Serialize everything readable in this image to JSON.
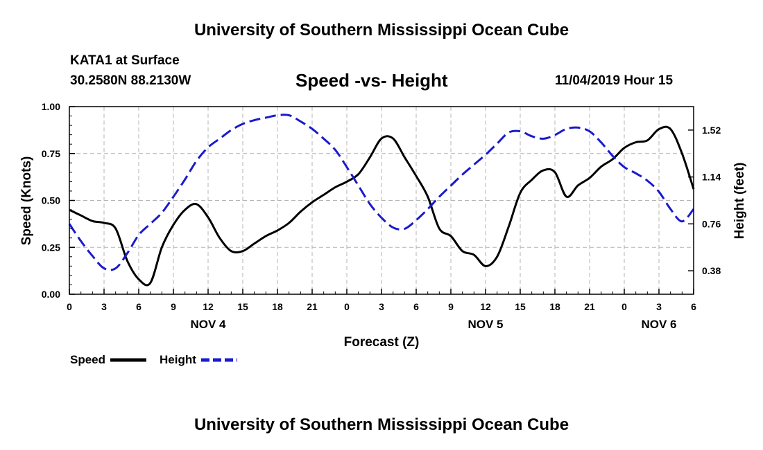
{
  "header": {
    "top_title": "University of Southern Mississippi Ocean Cube",
    "station": "KATA1 at Surface",
    "coords": "30.2580N 88.2130W",
    "datetime": "11/04/2019 Hour 15",
    "bottom_title": "University of Southern Mississippi Ocean Cube"
  },
  "colors": {
    "speed": "#000000",
    "height": "#1a1acc",
    "grid": "#b4b4b4"
  },
  "chart_data": {
    "type": "line",
    "title": "Speed -vs- Height",
    "xlabel": "Forecast (Z)",
    "ylabel": "Speed (Knots)",
    "y2label": "Height (feet)",
    "xlim": [
      0,
      54
    ],
    "ylim": [
      0,
      1.0
    ],
    "y2lim": [
      0.19,
      1.71
    ],
    "xticks": [
      0,
      3,
      6,
      9,
      12,
      15,
      18,
      21,
      24,
      27,
      30,
      33,
      36,
      39,
      42,
      45,
      48,
      51,
      54
    ],
    "xtick_labels": [
      "0",
      "3",
      "6",
      "9",
      "12",
      "15",
      "18",
      "21",
      "0",
      "3",
      "6",
      "9",
      "12",
      "15",
      "18",
      "21",
      "0",
      "3",
      "6"
    ],
    "yticks": [
      0.0,
      0.25,
      0.5,
      0.75,
      1.0
    ],
    "ytick_labels": [
      "0.00",
      "0.25",
      "0.50",
      "0.75",
      "1.00"
    ],
    "y2ticks": [
      0.38,
      0.76,
      1.14,
      1.52
    ],
    "y2tick_labels": [
      "0.38",
      "0.76",
      "1.14",
      "1.52"
    ],
    "day_labels": [
      {
        "x": 12,
        "label": "NOV 4"
      },
      {
        "x": 36,
        "label": "NOV 5"
      },
      {
        "x": 51,
        "label": "NOV 6"
      }
    ],
    "grid": true,
    "legend_position": "bottom-left",
    "series": [
      {
        "name": "Speed",
        "axis": "left",
        "style": "solid",
        "x": [
          0,
          1,
          2,
          3,
          4,
          5,
          6,
          7,
          8,
          9,
          10,
          11,
          12,
          13,
          14,
          15,
          16,
          17,
          18,
          19,
          20,
          21,
          22,
          23,
          24,
          25,
          26,
          27,
          28,
          29,
          30,
          31,
          32,
          33,
          34,
          35,
          36,
          37,
          38,
          39,
          40,
          41,
          42,
          43,
          44,
          45,
          46,
          47,
          48,
          49,
          50,
          51,
          52,
          53,
          54
        ],
        "values": [
          0.45,
          0.42,
          0.39,
          0.38,
          0.35,
          0.18,
          0.08,
          0.06,
          0.25,
          0.37,
          0.45,
          0.48,
          0.41,
          0.3,
          0.23,
          0.23,
          0.27,
          0.31,
          0.34,
          0.38,
          0.44,
          0.49,
          0.53,
          0.57,
          0.6,
          0.64,
          0.73,
          0.83,
          0.83,
          0.73,
          0.63,
          0.52,
          0.35,
          0.31,
          0.23,
          0.21,
          0.15,
          0.2,
          0.36,
          0.54,
          0.61,
          0.66,
          0.65,
          0.52,
          0.58,
          0.62,
          0.68,
          0.72,
          0.78,
          0.81,
          0.82,
          0.88,
          0.88,
          0.75,
          0.56
        ]
      },
      {
        "name": "Height",
        "axis": "right",
        "style": "dashed",
        "x": [
          0,
          1,
          2,
          3,
          4,
          5,
          6,
          7,
          8,
          9,
          10,
          11,
          12,
          13,
          14,
          15,
          16,
          17,
          18,
          19,
          20,
          21,
          22,
          23,
          24,
          25,
          26,
          27,
          28,
          29,
          30,
          31,
          32,
          33,
          34,
          35,
          36,
          37,
          38,
          39,
          40,
          41,
          42,
          43,
          44,
          45,
          46,
          47,
          48,
          49,
          50,
          51,
          52,
          53,
          54
        ],
        "values": [
          0.76,
          0.62,
          0.5,
          0.4,
          0.4,
          0.52,
          0.67,
          0.76,
          0.85,
          0.98,
          1.12,
          1.27,
          1.38,
          1.45,
          1.52,
          1.57,
          1.6,
          1.62,
          1.64,
          1.64,
          1.59,
          1.53,
          1.45,
          1.36,
          1.22,
          1.07,
          0.92,
          0.81,
          0.73,
          0.72,
          0.79,
          0.88,
          0.98,
          1.07,
          1.16,
          1.24,
          1.32,
          1.41,
          1.5,
          1.51,
          1.47,
          1.45,
          1.48,
          1.53,
          1.54,
          1.51,
          1.42,
          1.31,
          1.22,
          1.17,
          1.11,
          1.02,
          0.88,
          0.78,
          0.88
        ]
      }
    ]
  }
}
